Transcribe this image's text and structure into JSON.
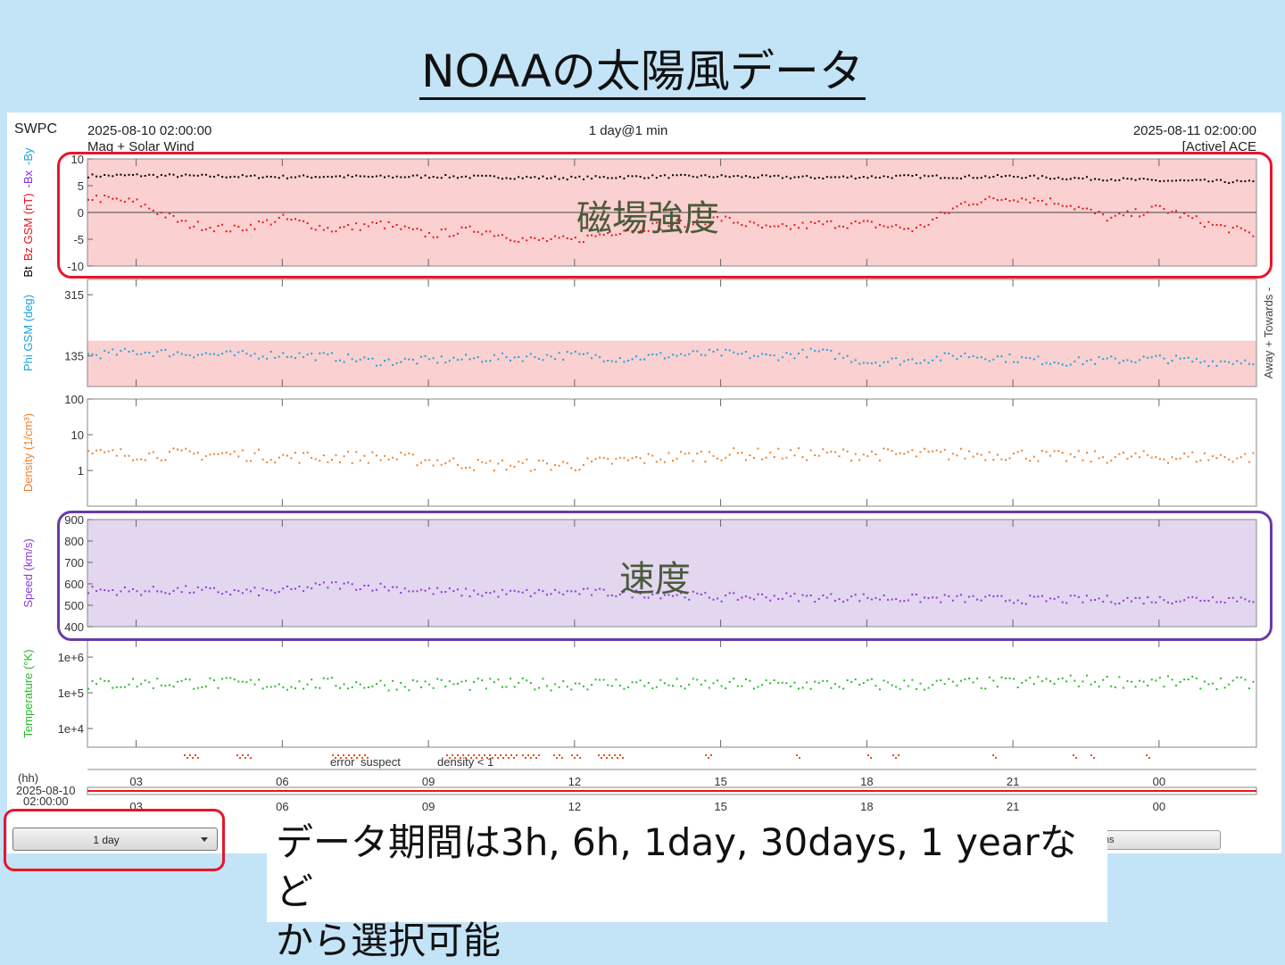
{
  "slide": {
    "title": "NOAAの太陽風データ"
  },
  "header": {
    "brand": "SWPC",
    "start_time": "2025-08-10 02:00:00",
    "subtitle": "Mag + Solar Wind",
    "range": "1 day@1 min",
    "end_time": "2025-08-11 02:00:00",
    "source": "[Active] ACE"
  },
  "annotations": {
    "field": "磁場強度",
    "speed": "速度"
  },
  "controls": {
    "range_select": "1 day",
    "second_button": "ns"
  },
  "note": {
    "line1": "データ期間は3h, 6h, 1day, 30days, 1 yearなど",
    "line2": "から選択可能"
  },
  "colors": {
    "bt": "#000000",
    "bz": "#e8161a",
    "bx": "#8a2be2",
    "by": "#1aa3e0",
    "phi": "#1aa3e0",
    "density": "#f07f28",
    "speed": "#8a3ad8",
    "temperature": "#2bb82b",
    "highlight_red": "#e8162a",
    "highlight_purple": "#6a3aa8"
  },
  "chart_data": {
    "type": "scatter",
    "x_axis": {
      "label": "(hh)",
      "date": "2025-08-10",
      "start": "02:00:00",
      "ticks": [
        "03",
        "06",
        "09",
        "12",
        "15",
        "18",
        "21",
        "00"
      ],
      "tick_hours": [
        3,
        6,
        9,
        12,
        15,
        18,
        21,
        24
      ],
      "range_hours": [
        2,
        26
      ]
    },
    "panels": [
      {
        "key": "mag",
        "ylabel_parts": [
          {
            "text": "Bt",
            "color": "#000000"
          },
          {
            "text": "Bz GSM (nT)",
            "color": "#e8161a"
          },
          {
            "text": "-Bx",
            "color": "#8a2be2"
          },
          {
            "text": "-By",
            "color": "#1aa3e0"
          }
        ],
        "ylim": [
          -10,
          10
        ],
        "ticks": [
          10,
          5,
          0,
          -5,
          -10
        ],
        "tick_labels": [
          "10",
          "5",
          "0",
          "-5",
          "-10"
        ],
        "series": [
          {
            "name": "Bt",
            "values_hourly": [
              7.0,
              7.1,
              7.0,
              6.9,
              6.8,
              6.9,
              6.8,
              6.9,
              6.8,
              6.7,
              6.6,
              6.8,
              6.9,
              6.9,
              6.8,
              6.7,
              6.8,
              6.9,
              6.8,
              6.9,
              6.6,
              6.4,
              6.1,
              6.0,
              5.8
            ]
          },
          {
            "name": "Bz GSM",
            "values_hourly": [
              3,
              2,
              -2,
              -3,
              -1,
              -3,
              -2,
              -4,
              -3,
              -5,
              -5,
              -3,
              -2,
              -1,
              -3,
              -2,
              -2,
              -3,
              2,
              3,
              2,
              -1,
              1,
              -2,
              -4
            ]
          }
        ]
      },
      {
        "key": "phi",
        "ylabel": "Phi GSM (deg)",
        "right_label": "Away + Towards -",
        "scale": "linear",
        "ylim": [
          45,
          360
        ],
        "ticks": [
          315,
          135
        ],
        "tick_labels": [
          "315",
          "135"
        ],
        "series": [
          {
            "name": "Phi GSM",
            "values_hourly": [
              140,
              150,
              145,
              140,
              142,
              135,
              120,
              125,
              130,
              135,
              140,
              130,
              140,
              145,
              135,
              150,
              120,
              125,
              140,
              130,
              120,
              125,
              130,
              120,
              125
            ]
          }
        ]
      },
      {
        "key": "density",
        "ylabel": "Density (1/cm³)",
        "scale": "log",
        "ylim": [
          0.1,
          100
        ],
        "ticks": [
          100,
          10,
          1
        ],
        "tick_labels": [
          "100",
          "10",
          "1"
        ],
        "series": [
          {
            "name": "Density",
            "values_hourly": [
              3,
              3,
              3,
              3,
              2.5,
              2.5,
              2.5,
              2,
              1.5,
              1.5,
              1.5,
              2,
              2.5,
              3,
              3,
              3,
              3,
              3,
              3,
              3,
              2.5,
              2.5,
              2.5,
              2.5,
              2.5
            ]
          }
        ]
      },
      {
        "key": "speed",
        "ylabel": "Speed (km/s)",
        "scale": "linear",
        "ylim": [
          400,
          900
        ],
        "ticks": [
          900,
          800,
          700,
          600,
          500,
          400
        ],
        "tick_labels": [
          "900",
          "800",
          "700",
          "600",
          "500",
          "400"
        ],
        "series": [
          {
            "name": "Speed",
            "values_hourly": [
              575,
              570,
              575,
              565,
              570,
              600,
              590,
              570,
              560,
              560,
              565,
              560,
              555,
              540,
              545,
              540,
              540,
              535,
              535,
              530,
              530,
              530,
              530,
              535,
              535
            ]
          }
        ]
      },
      {
        "key": "temperature",
        "ylabel": "Temperature (°K)",
        "scale": "log",
        "ylim": [
          3000,
          3000000
        ],
        "ticks": [
          1000000,
          100000,
          10000
        ],
        "tick_labels": [
          "1e+6",
          "1e+5",
          "1e+4"
        ],
        "series": [
          {
            "name": "Temperature",
            "values_hourly": [
              180000,
              200000,
              200000,
              190000,
              180000,
              190000,
              180000,
              190000,
              180000,
              180000,
              190000,
              190000,
              180000,
              180000,
              180000,
              180000,
              180000,
              180000,
              190000,
              200000,
              230000,
              220000,
              210000,
              200000,
              190000
            ]
          }
        ]
      }
    ],
    "flag_legend": [
      {
        "text": "error",
        "color": "#e8161a"
      },
      {
        "text": "suspect",
        "color": "#e8b800"
      },
      {
        "text": "density < 1",
        "color": "#f07f28"
      }
    ]
  }
}
